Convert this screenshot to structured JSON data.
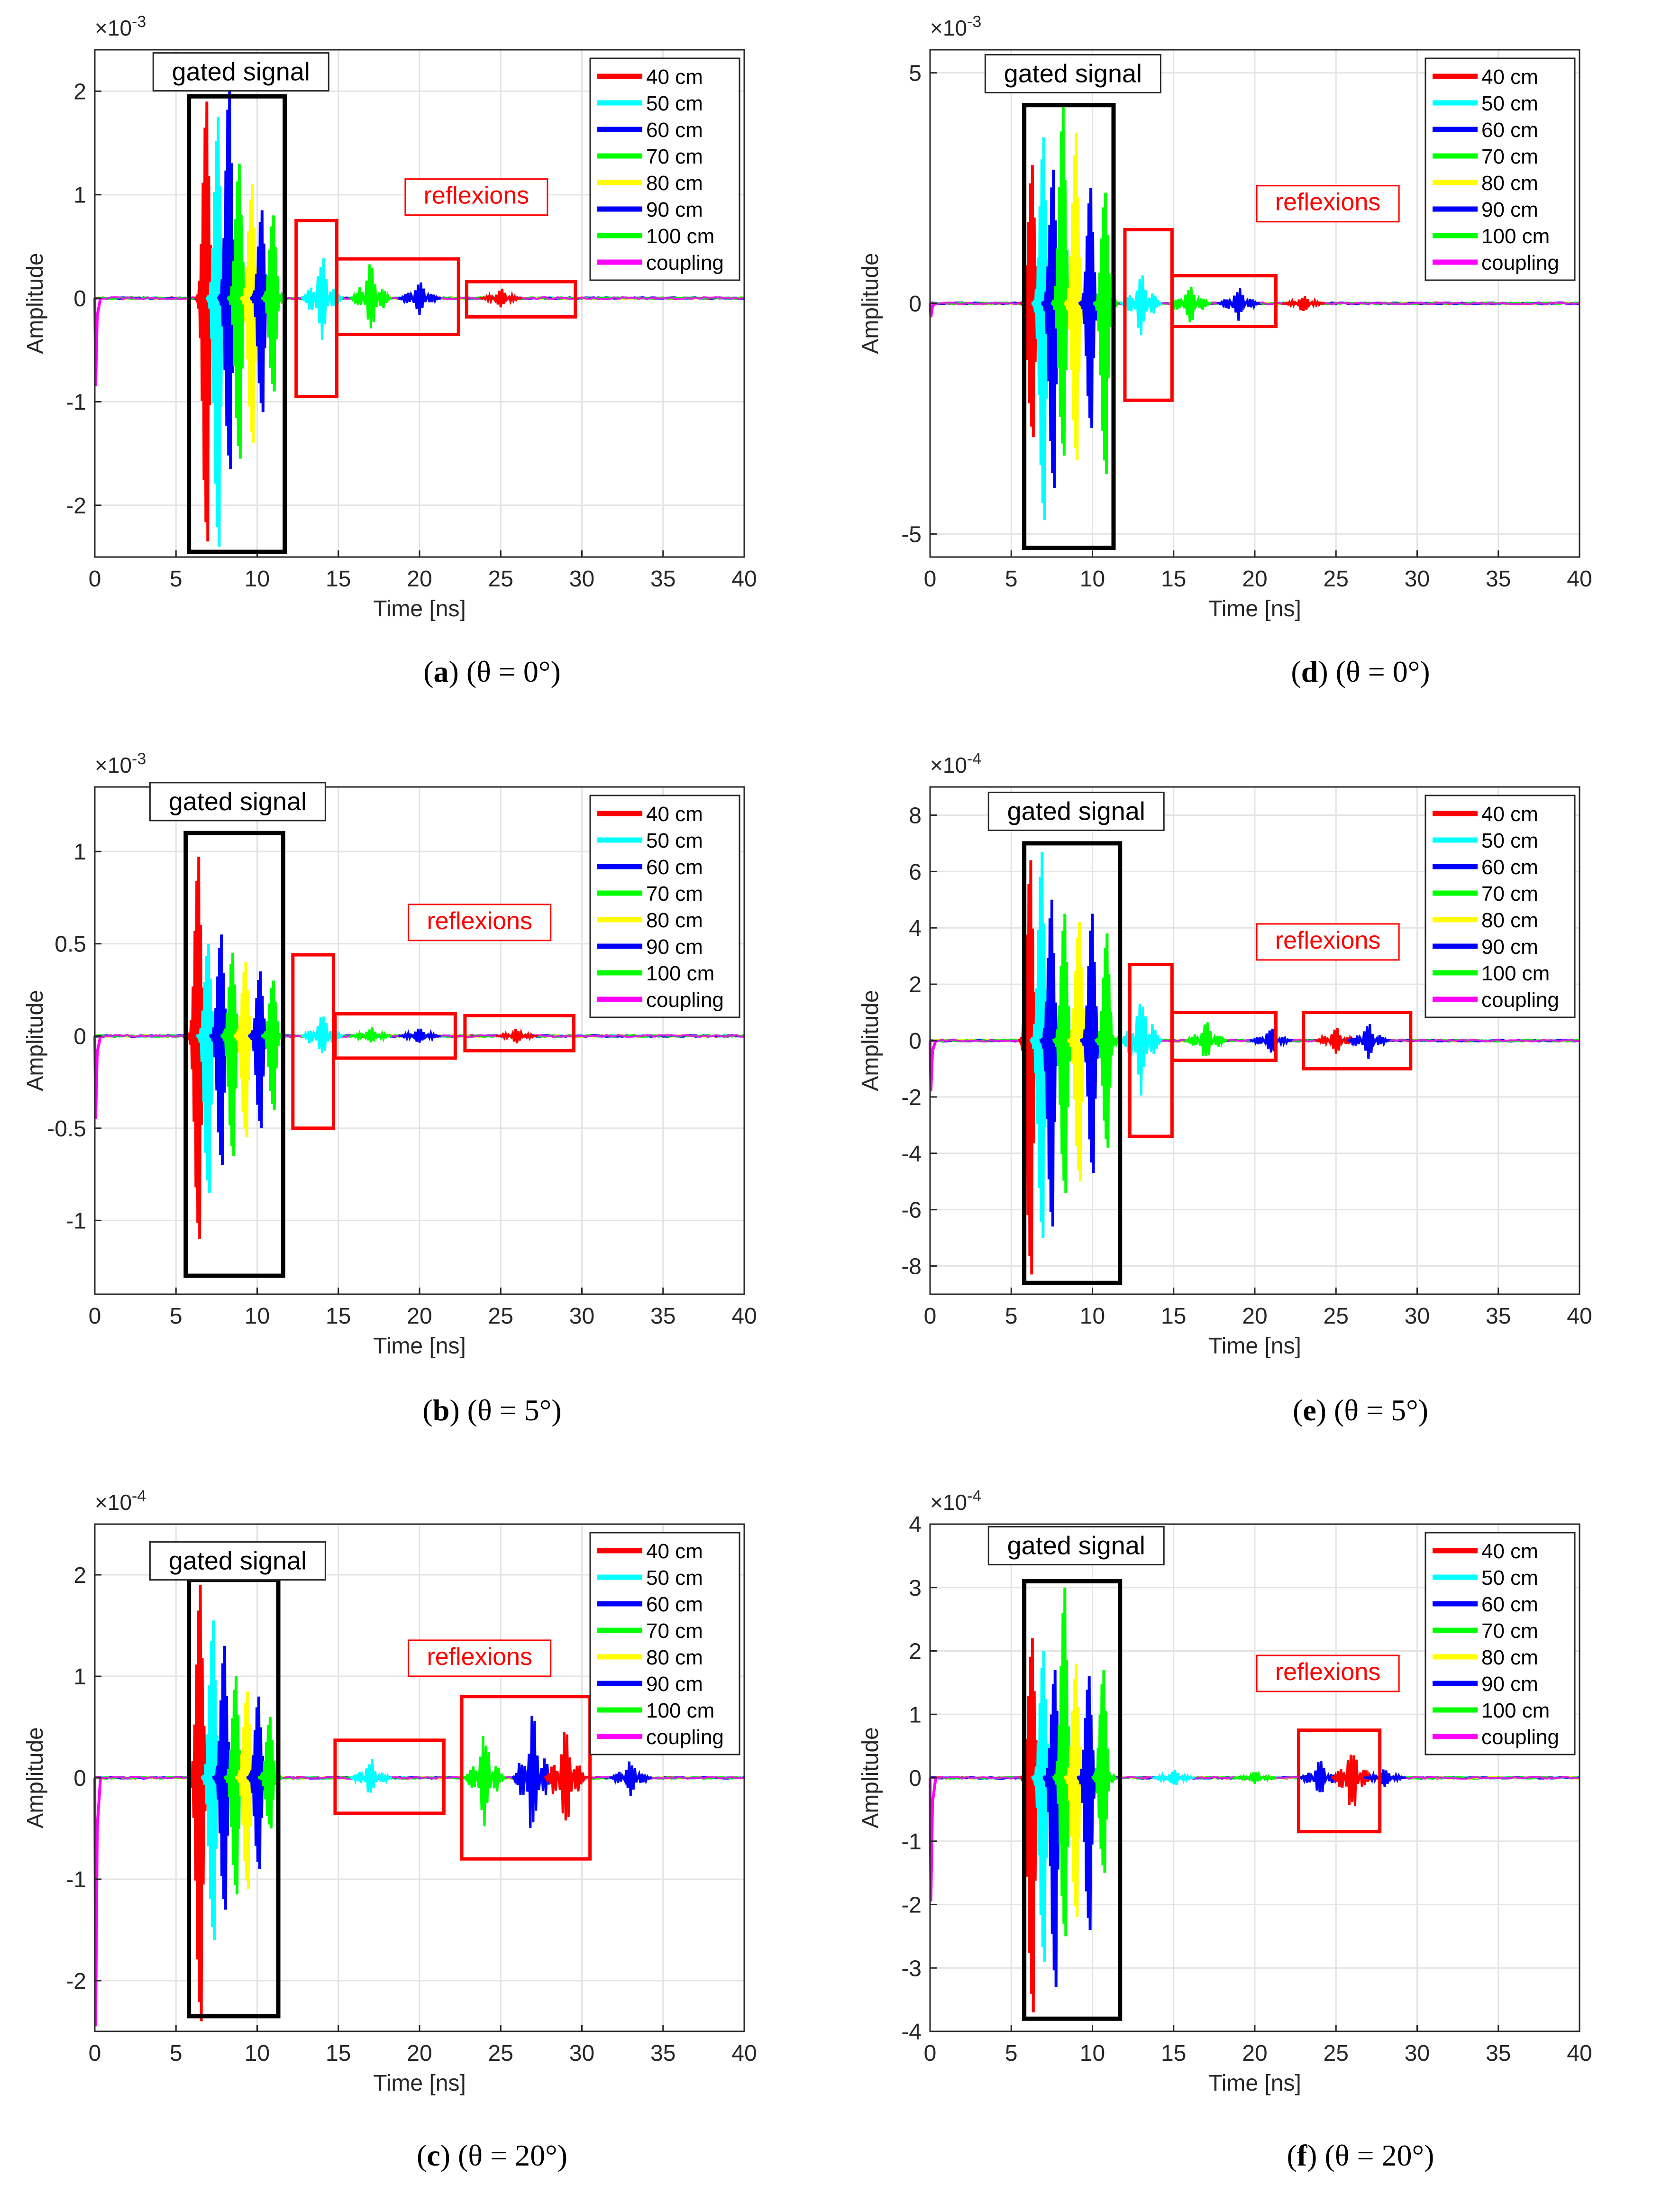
{
  "figure": {
    "series_legend": [
      {
        "name": "40 cm",
        "color": "#ff0000"
      },
      {
        "name": "50 cm",
        "color": "#00ffff"
      },
      {
        "name": "60 cm",
        "color": "#0000ff"
      },
      {
        "name": "70 cm",
        "color": "#00ff00"
      },
      {
        "name": "80 cm",
        "color": "#ffff00"
      },
      {
        "name": "90 cm",
        "color": "#0000ff"
      },
      {
        "name": "100 cm",
        "color": "#00ff00"
      },
      {
        "name": "coupling",
        "color": "#ff00ff"
      }
    ],
    "annotations": {
      "gated_label": "gated signal",
      "reflexions_label": "reflexions"
    }
  },
  "chart_data": [
    {
      "id": "a",
      "type": "line",
      "caption_letter": "a",
      "caption_theta": "(θ = 0°)",
      "title": "",
      "xlabel": "Time [ns]",
      "ylabel": "Amplitude",
      "exponent": "×10^-3",
      "exponent_base": "×10",
      "exponent_power": "-3",
      "xlim": [
        0,
        40
      ],
      "ylim": [
        -2.5,
        2.4
      ],
      "xticks": [
        0,
        5,
        10,
        15,
        20,
        25,
        30,
        35,
        40
      ],
      "yticks": [
        -2,
        -1,
        0,
        1,
        2
      ],
      "ytick_labels": [
        "-2",
        "-1",
        "0",
        "1",
        "2"
      ],
      "peaks": [
        {
          "t": 6.9,
          "up": 1.9,
          "down": -2.35
        },
        {
          "t": 7.6,
          "up": 1.75,
          "down": -2.4
        },
        {
          "t": 8.3,
          "up": 2.1,
          "down": -1.65
        },
        {
          "t": 8.9,
          "up": 1.3,
          "down": -1.55
        },
        {
          "t": 9.7,
          "up": 1.1,
          "down": -1.4
        },
        {
          "t": 10.3,
          "up": 0.85,
          "down": -1.1
        },
        {
          "t": 11.0,
          "up": 0.8,
          "down": -0.9
        }
      ],
      "reflections": [
        {
          "t": 14,
          "amp": 0.45
        },
        {
          "t": 17,
          "amp": 0.35
        },
        {
          "t": 20,
          "amp": 0.2
        },
        {
          "t": 25,
          "amp": 0.1
        }
      ],
      "coupling_spike": -0.85,
      "gated_box": {
        "t0": 5.8,
        "t1": 11.7,
        "y0": -2.45,
        "y1": 1.95
      },
      "reflexion_boxes": [
        {
          "t0": 12.4,
          "t1": 14.9,
          "y0": -0.95,
          "y1": 0.75
        },
        {
          "t0": 14.9,
          "t1": 22.4,
          "y0": -0.35,
          "y1": 0.38
        },
        {
          "t0": 22.9,
          "t1": 29.6,
          "y0": -0.18,
          "y1": 0.16
        }
      ],
      "gated_label_pos": {
        "t": 9.0,
        "y": 2.15
      },
      "reflexions_label_pos": {
        "t": 23.5,
        "y": 0.95
      }
    },
    {
      "id": "b",
      "type": "line",
      "caption_letter": "b",
      "caption_theta": "(θ = 5°)",
      "title": "",
      "xlabel": "Time [ns]",
      "ylabel": "Amplitude",
      "exponent": "×10^-3",
      "exponent_base": "×10",
      "exponent_power": "-3",
      "xlim": [
        0,
        40
      ],
      "ylim": [
        -1.4,
        1.35
      ],
      "xticks": [
        0,
        5,
        10,
        15,
        20,
        25,
        30,
        35,
        40
      ],
      "yticks": [
        -1,
        -0.5,
        0,
        0.5,
        1
      ],
      "ytick_labels": [
        "-1",
        "-0.5",
        "0",
        "0.5",
        "1"
      ],
      "peaks": [
        {
          "t": 6.4,
          "up": 0.97,
          "down": -1.1
        },
        {
          "t": 7.0,
          "up": 0.5,
          "down": -0.85
        },
        {
          "t": 7.8,
          "up": 0.55,
          "down": -0.7
        },
        {
          "t": 8.5,
          "up": 0.45,
          "down": -0.65
        },
        {
          "t": 9.3,
          "up": 0.4,
          "down": -0.55
        },
        {
          "t": 10.2,
          "up": 0.35,
          "down": -0.5
        },
        {
          "t": 11.0,
          "up": 0.3,
          "down": -0.4
        }
      ],
      "reflections": [
        {
          "t": 14,
          "amp": 0.15
        },
        {
          "t": 17,
          "amp": 0.05
        },
        {
          "t": 20,
          "amp": 0.05
        },
        {
          "t": 26,
          "amp": 0.04
        }
      ],
      "coupling_spike": -0.45,
      "gated_box": {
        "t0": 5.6,
        "t1": 11.6,
        "y0": -1.3,
        "y1": 1.1
      },
      "reflexion_boxes": [
        {
          "t0": 12.2,
          "t1": 14.7,
          "y0": -0.5,
          "y1": 0.44
        },
        {
          "t0": 14.8,
          "t1": 22.2,
          "y0": -0.12,
          "y1": 0.12
        },
        {
          "t0": 22.8,
          "t1": 29.5,
          "y0": -0.08,
          "y1": 0.11
        }
      ],
      "gated_label_pos": {
        "t": 8.8,
        "y": 1.25
      },
      "reflexions_label_pos": {
        "t": 23.7,
        "y": 0.6
      }
    },
    {
      "id": "c",
      "type": "line",
      "caption_letter": "c",
      "caption_theta": "(θ = 20°)",
      "title": "",
      "xlabel": "Time [ns]",
      "ylabel": "Amplitude",
      "exponent": "×10^-4",
      "exponent_base": "×10",
      "exponent_power": "-4",
      "xlim": [
        0,
        40
      ],
      "ylim": [
        -2.5,
        2.5
      ],
      "xticks": [
        0,
        5,
        10,
        15,
        20,
        25,
        30,
        35,
        40
      ],
      "yticks": [
        -2,
        -1,
        0,
        1,
        2
      ],
      "ytick_labels": [
        "-2",
        "-1",
        "0",
        "1",
        "2"
      ],
      "peaks": [
        {
          "t": 6.5,
          "up": 1.9,
          "down": -2.4
        },
        {
          "t": 7.3,
          "up": 1.55,
          "down": -1.6
        },
        {
          "t": 8.0,
          "up": 1.3,
          "down": -1.3
        },
        {
          "t": 8.7,
          "up": 1.0,
          "down": -1.15
        },
        {
          "t": 9.4,
          "up": 0.85,
          "down": -1.1
        },
        {
          "t": 10.1,
          "up": 0.8,
          "down": -0.9
        },
        {
          "t": 10.8,
          "up": 0.6,
          "down": -0.5
        }
      ],
      "reflections": [
        {
          "t": 17,
          "amp": 0.2
        },
        {
          "t": 24,
          "amp": 0.5
        },
        {
          "t": 27,
          "amp": 0.7
        },
        {
          "t": 29,
          "amp": 0.6
        },
        {
          "t": 33,
          "amp": 0.2
        }
      ],
      "coupling_spike": -2.45,
      "gated_box": {
        "t0": 5.8,
        "t1": 11.3,
        "y0": -2.35,
        "y1": 1.95
      },
      "reflexion_boxes": [
        {
          "t0": 14.8,
          "t1": 21.5,
          "y0": -0.35,
          "y1": 0.37
        },
        {
          "t0": 22.6,
          "t1": 30.5,
          "y0": -0.8,
          "y1": 0.8
        }
      ],
      "gated_label_pos": {
        "t": 8.8,
        "y": 2.1
      },
      "reflexions_label_pos": {
        "t": 23.7,
        "y": 1.15
      }
    },
    {
      "id": "d",
      "type": "line",
      "caption_letter": "d",
      "caption_theta": "(θ = 0°)",
      "title": "",
      "xlabel": "Time [ns]",
      "ylabel": "Amplitude",
      "exponent": "×10^-3",
      "exponent_base": "×10",
      "exponent_power": "-3",
      "xlim": [
        0,
        40
      ],
      "ylim": [
        -5.5,
        5.5
      ],
      "xticks": [
        0,
        5,
        10,
        15,
        20,
        25,
        30,
        35,
        40
      ],
      "yticks": [
        -5,
        0,
        5
      ],
      "ytick_labels": [
        "-5",
        "0",
        "5"
      ],
      "peaks": [
        {
          "t": 6.3,
          "up": 3.0,
          "down": -2.9
        },
        {
          "t": 7.0,
          "up": 3.6,
          "down": -4.7
        },
        {
          "t": 7.6,
          "up": 2.9,
          "down": -4.0
        },
        {
          "t": 8.2,
          "up": 4.3,
          "down": -3.3
        },
        {
          "t": 9.0,
          "up": 3.7,
          "down": -3.4
        },
        {
          "t": 9.9,
          "up": 2.5,
          "down": -2.7
        },
        {
          "t": 10.8,
          "up": 2.4,
          "down": -3.7
        }
      ],
      "reflections": [
        {
          "t": 13,
          "amp": 0.8
        },
        {
          "t": 16,
          "amp": 0.5
        },
        {
          "t": 19,
          "amp": 0.4
        },
        {
          "t": 23,
          "amp": 0.2
        }
      ],
      "coupling_spike": -0.3,
      "gated_box": {
        "t0": 5.8,
        "t1": 11.3,
        "y0": -5.3,
        "y1": 4.3
      },
      "reflexion_boxes": [
        {
          "t0": 12.0,
          "t1": 14.9,
          "y0": -2.1,
          "y1": 1.6
        },
        {
          "t0": 14.9,
          "t1": 21.3,
          "y0": -0.5,
          "y1": 0.6
        }
      ],
      "gated_label_pos": {
        "t": 8.8,
        "y": 4.9
      },
      "reflexions_label_pos": {
        "t": 24.5,
        "y": 2.1
      }
    },
    {
      "id": "e",
      "type": "line",
      "caption_letter": "e",
      "caption_theta": "(θ = 5°)",
      "title": "",
      "xlabel": "Time [ns]",
      "ylabel": "Amplitude",
      "exponent": "×10^-4",
      "exponent_base": "×10",
      "exponent_power": "-4",
      "xlim": [
        0,
        40
      ],
      "ylim": [
        -9,
        9
      ],
      "xticks": [
        0,
        5,
        10,
        15,
        20,
        25,
        30,
        35,
        40
      ],
      "yticks": [
        -8,
        -6,
        -4,
        -2,
        0,
        2,
        4,
        6,
        8
      ],
      "ytick_labels": [
        "-8",
        "-6",
        "-4",
        "-2",
        "0",
        "2",
        "4",
        "6",
        "8"
      ],
      "peaks": [
        {
          "t": 6.2,
          "up": 6.4,
          "down": -8.3
        },
        {
          "t": 6.9,
          "up": 6.7,
          "down": -7.0
        },
        {
          "t": 7.5,
          "up": 5.0,
          "down": -6.6
        },
        {
          "t": 8.3,
          "up": 4.5,
          "down": -5.4
        },
        {
          "t": 9.2,
          "up": 4.2,
          "down": -5.0
        },
        {
          "t": 10.0,
          "up": 4.5,
          "down": -4.7
        },
        {
          "t": 10.9,
          "up": 3.8,
          "down": -3.8
        }
      ],
      "reflections": [
        {
          "t": 13,
          "amp": 2.0
        },
        {
          "t": 17,
          "amp": 0.8
        },
        {
          "t": 21,
          "amp": 0.5
        },
        {
          "t": 25,
          "amp": 0.5
        },
        {
          "t": 27,
          "amp": 0.7
        }
      ],
      "coupling_spike": -1.8,
      "gated_box": {
        "t0": 5.8,
        "t1": 11.7,
        "y0": -8.6,
        "y1": 7.0
      },
      "reflexion_boxes": [
        {
          "t0": 12.3,
          "t1": 14.9,
          "y0": -3.4,
          "y1": 2.7
        },
        {
          "t0": 14.9,
          "t1": 21.3,
          "y0": -0.7,
          "y1": 1.0
        },
        {
          "t0": 23.0,
          "t1": 29.6,
          "y0": -1.0,
          "y1": 1.0
        }
      ],
      "gated_label_pos": {
        "t": 9.0,
        "y": 8.0
      },
      "reflexions_label_pos": {
        "t": 24.5,
        "y": 3.4
      }
    },
    {
      "id": "f",
      "type": "line",
      "caption_letter": "f",
      "caption_theta": "(θ = 20°)",
      "title": "",
      "xlabel": "Time [ns]",
      "ylabel": "Amplitude",
      "exponent": "×10^-4",
      "exponent_base": "×10",
      "exponent_power": "-4",
      "xlim": [
        0,
        40
      ],
      "ylim": [
        -4,
        4
      ],
      "xticks": [
        0,
        5,
        10,
        15,
        20,
        25,
        30,
        35,
        40
      ],
      "yticks": [
        -4,
        -3,
        -2,
        -1,
        0,
        1,
        2,
        3,
        4
      ],
      "ytick_labels": [
        "-4",
        "-3",
        "-2",
        "-1",
        "0",
        "1",
        "2",
        "3",
        "4"
      ],
      "peaks": [
        {
          "t": 6.3,
          "up": 2.2,
          "down": -3.7
        },
        {
          "t": 7.0,
          "up": 2.0,
          "down": -2.9
        },
        {
          "t": 7.7,
          "up": 1.7,
          "down": -3.3
        },
        {
          "t": 8.3,
          "up": 3.0,
          "down": -2.5
        },
        {
          "t": 9.0,
          "up": 1.8,
          "down": -2.2
        },
        {
          "t": 9.8,
          "up": 1.6,
          "down": -2.4
        },
        {
          "t": 10.7,
          "up": 1.7,
          "down": -1.5
        }
      ],
      "reflections": [
        {
          "t": 15,
          "amp": 0.15
        },
        {
          "t": 20,
          "amp": 0.1
        },
        {
          "t": 24,
          "amp": 0.3
        },
        {
          "t": 26,
          "amp": 0.6
        },
        {
          "t": 28,
          "amp": 0.15
        }
      ],
      "coupling_spike": -1.95,
      "gated_box": {
        "t0": 5.8,
        "t1": 11.7,
        "y0": -3.8,
        "y1": 3.1
      },
      "reflexion_boxes": [
        {
          "t0": 22.7,
          "t1": 27.7,
          "y0": -0.85,
          "y1": 0.75
        }
      ],
      "gated_label_pos": {
        "t": 9.0,
        "y": 3.6
      },
      "reflexions_label_pos": {
        "t": 24.5,
        "y": 1.6
      }
    }
  ]
}
